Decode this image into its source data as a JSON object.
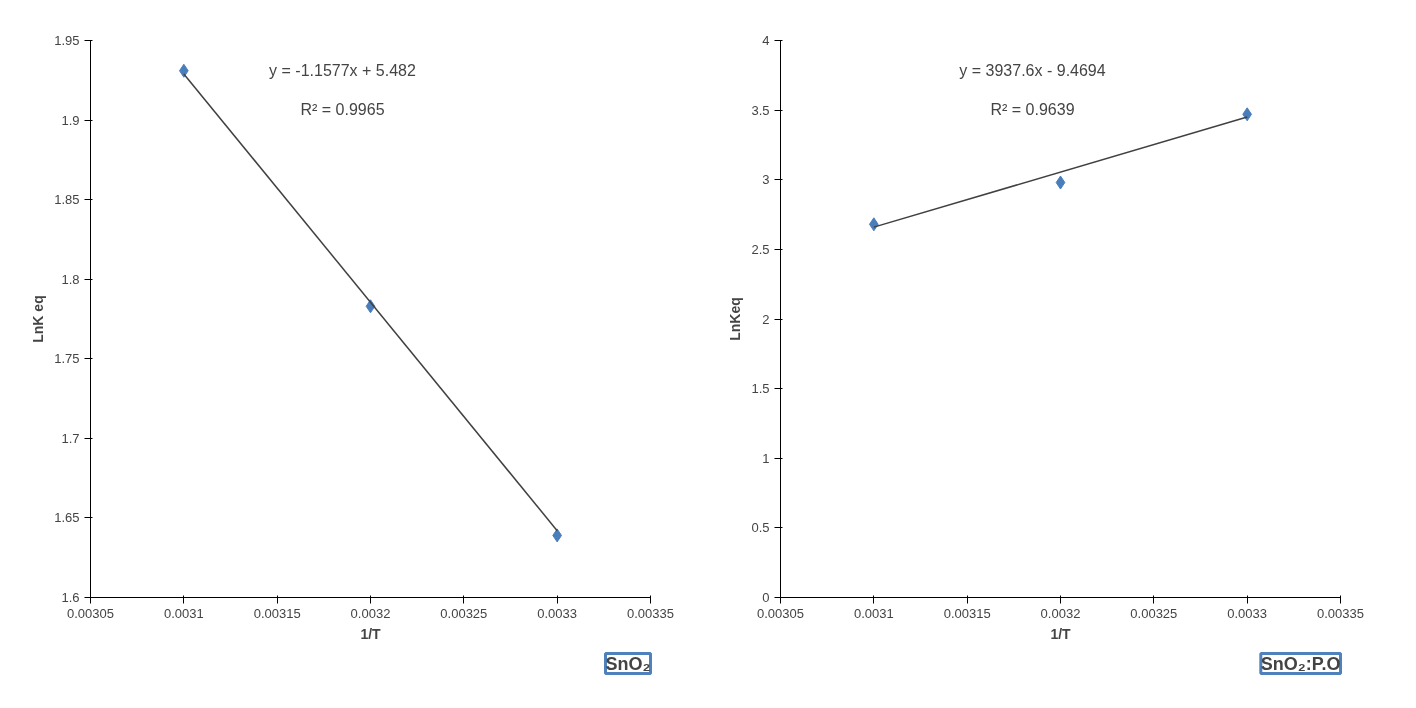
{
  "chart_data": [
    {
      "type": "scatter",
      "xlabel": "1/T",
      "ylabel": "LnK eq",
      "marker": "diamond",
      "grid": false,
      "xlim": [
        0.00305,
        0.00335
      ],
      "xticks": [
        0.00305,
        0.0031,
        0.00315,
        0.0032,
        0.00325,
        0.0033,
        0.00335
      ],
      "ylim": [
        1.6,
        1.95
      ],
      "yticks": [
        1.6,
        1.65,
        1.7,
        1.75,
        1.8,
        1.85,
        1.9,
        1.95
      ],
      "series": [
        {
          "color": "#4a7ebb",
          "x": [
            0.0031,
            0.0032,
            0.0033
          ],
          "values": [
            1.931,
            1.783,
            1.639
          ]
        },
        {
          "type": "line",
          "marker": "none",
          "color": "#404040",
          "x": [
            0.0031,
            0.0033
          ],
          "values": [
            1.929,
            1.642
          ]
        }
      ],
      "annotations": [
        "y = -1.1577x + 5.482",
        "R² = 0.9965",
        "SnO₂"
      ]
    },
    {
      "type": "scatter",
      "xlabel": "1/T",
      "ylabel": "LnKeq",
      "marker": "diamond",
      "grid": false,
      "xlim": [
        0.00305,
        0.00335
      ],
      "xticks": [
        0.00305,
        0.0031,
        0.00315,
        0.0032,
        0.00325,
        0.0033,
        0.00335
      ],
      "ylim": [
        0,
        4
      ],
      "yticks": [
        0,
        0.5,
        1,
        1.5,
        2,
        2.5,
        3,
        3.5,
        4
      ],
      "series": [
        {
          "color": "#4a7ebb",
          "x": [
            0.0031,
            0.0032,
            0.0033
          ],
          "values": [
            2.68,
            2.98,
            3.47
          ]
        },
        {
          "type": "line",
          "marker": "none",
          "color": "#404040",
          "x": [
            0.0031,
            0.0033
          ],
          "values": [
            2.66,
            3.45
          ]
        }
      ],
      "annotations": [
        "y = 3937.6x - 9.4694",
        "R² = 0.9639",
        "SnO₂:P.O"
      ]
    }
  ]
}
